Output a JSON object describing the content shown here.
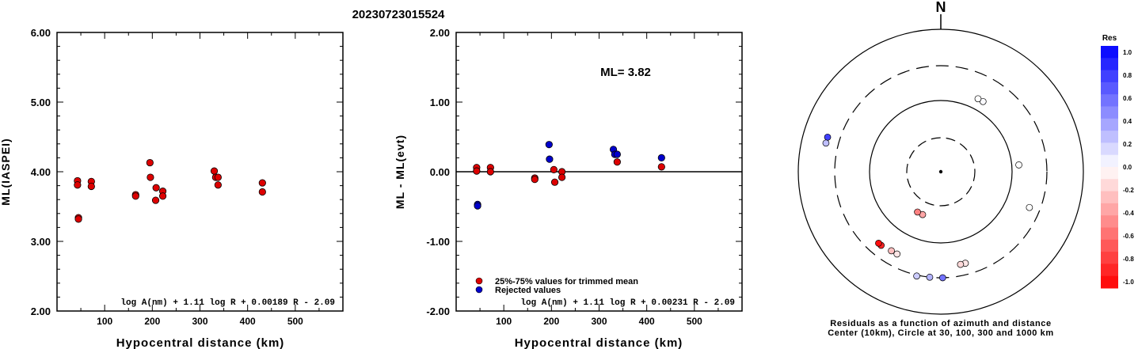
{
  "page_title": "20230723015524",
  "chart_data": [
    {
      "type": "scatter",
      "id": "ml-vs-distance",
      "xlabel": "Hypocentral distance (km)",
      "ylabel": "ML(IASPEI)",
      "xlim": [
        0,
        600
      ],
      "ylim": [
        2.0,
        6.0
      ],
      "x_ticks": [
        "100",
        "200",
        "300",
        "400",
        "500"
      ],
      "y_ticks": [
        "2.00",
        "3.00",
        "4.00",
        "5.00",
        "6.00"
      ],
      "formula": "log A(nm) + 1.11 log R + 0.00189 R - 2.09",
      "marker_color": "#dd0000",
      "points": [
        [
          43,
          3.87
        ],
        [
          43,
          3.81
        ],
        [
          45,
          3.34
        ],
        [
          45,
          3.32
        ],
        [
          72,
          3.86
        ],
        [
          72,
          3.79
        ],
        [
          165,
          3.67
        ],
        [
          165,
          3.65
        ],
        [
          195,
          4.13
        ],
        [
          196,
          3.92
        ],
        [
          208,
          3.77
        ],
        [
          207,
          3.59
        ],
        [
          222,
          3.72
        ],
        [
          222,
          3.65
        ],
        [
          330,
          4.01
        ],
        [
          333,
          3.92
        ],
        [
          338,
          3.92
        ],
        [
          338,
          3.81
        ],
        [
          431,
          3.84
        ],
        [
          431,
          3.71
        ]
      ]
    },
    {
      "type": "scatter",
      "id": "residual-vs-distance",
      "xlabel": "Hypocentral distance (km)",
      "ylabel": "ML - ML(evt)",
      "xlim": [
        0,
        600
      ],
      "ylim": [
        -2.0,
        2.0
      ],
      "x_ticks": [
        "100",
        "200",
        "300",
        "400",
        "500"
      ],
      "y_ticks": [
        "-2.00",
        "-1.00",
        "0.00",
        "1.00",
        "2.00"
      ],
      "annotation": "ML= 3.82",
      "formula": "log A(nm) + 1.11 log R + 0.00231 R - 2.09",
      "legend": [
        {
          "label": "25%-75% values for trimmed mean",
          "color": "#dd0000"
        },
        {
          "label": "Rejected values",
          "color": "#0000cc"
        }
      ],
      "series": [
        {
          "name": "25%-75% values for trimmed mean",
          "color": "#dd0000",
          "points": [
            [
              43,
              0.06
            ],
            [
              43,
              0.01
            ],
            [
              72,
              0.06
            ],
            [
              72,
              0.0
            ],
            [
              165,
              -0.09
            ],
            [
              165,
              -0.11
            ],
            [
              205,
              0.03
            ],
            [
              207,
              -0.15
            ],
            [
              222,
              0.0
            ],
            [
              222,
              -0.08
            ],
            [
              338,
              0.14
            ],
            [
              431,
              0.07
            ]
          ]
        },
        {
          "name": "Rejected values",
          "color": "#0000cc",
          "points": [
            [
              45,
              -0.47
            ],
            [
              45,
              -0.49
            ],
            [
              195,
              0.39
            ],
            [
              196,
              0.18
            ],
            [
              330,
              0.32
            ],
            [
              333,
              0.25
            ],
            [
              338,
              0.25
            ],
            [
              431,
              0.2
            ]
          ]
        }
      ]
    },
    {
      "type": "polar-scatter",
      "id": "azimuth-residuals",
      "north_label": "N",
      "caption_line1": "Residuals as a function of azimuth and distance",
      "caption_line2": "Center (10km), Circle at 30, 100, 300 and 1000 km",
      "colorbar_title": "Res",
      "colorbar_ticks": [
        "1.0",
        "0.8",
        "0.6",
        "0.4",
        "0.2",
        "0.0",
        "-0.2",
        "-0.4",
        "-0.6",
        "-0.8",
        "-1.0"
      ],
      "rings_km": [
        30,
        100,
        300,
        1000
      ],
      "points": [
        {
          "azimuth": 31,
          "distance_km": 140,
          "residual": 0.02
        },
        {
          "azimuth": 27,
          "distance_km": 140,
          "residual": 0.0
        },
        {
          "azimuth": 85,
          "distance_km": 125,
          "residual": 0.0
        },
        {
          "azimuth": 112,
          "distance_km": 215,
          "residual": 0.0
        },
        {
          "azimuth": 165,
          "distance_km": 210,
          "residual": -0.1
        },
        {
          "azimuth": 168,
          "distance_km": 210,
          "residual": -0.15
        },
        {
          "azimuth": 179,
          "distance_km": 300,
          "residual": 0.55
        },
        {
          "azimuth": 186,
          "distance_km": 300,
          "residual": 0.3
        },
        {
          "azimuth": 193,
          "distance_km": 310,
          "residual": 0.2
        },
        {
          "azimuth": 203,
          "distance_km": 45,
          "residual": -0.35
        },
        {
          "azimuth": 210,
          "distance_km": 45,
          "residual": -0.5
        },
        {
          "azimuth": 208,
          "distance_km": 200,
          "residual": -0.1
        },
        {
          "azimuth": 212,
          "distance_km": 200,
          "residual": -0.25
        },
        {
          "azimuth": 219,
          "distance_km": 210,
          "residual": -0.85
        },
        {
          "azimuth": 221,
          "distance_km": 210,
          "residual": -0.95
        },
        {
          "azimuth": 287,
          "distance_km": 450,
          "residual": 0.75
        },
        {
          "azimuth": 284,
          "distance_km": 450,
          "residual": 0.25
        }
      ]
    }
  ]
}
